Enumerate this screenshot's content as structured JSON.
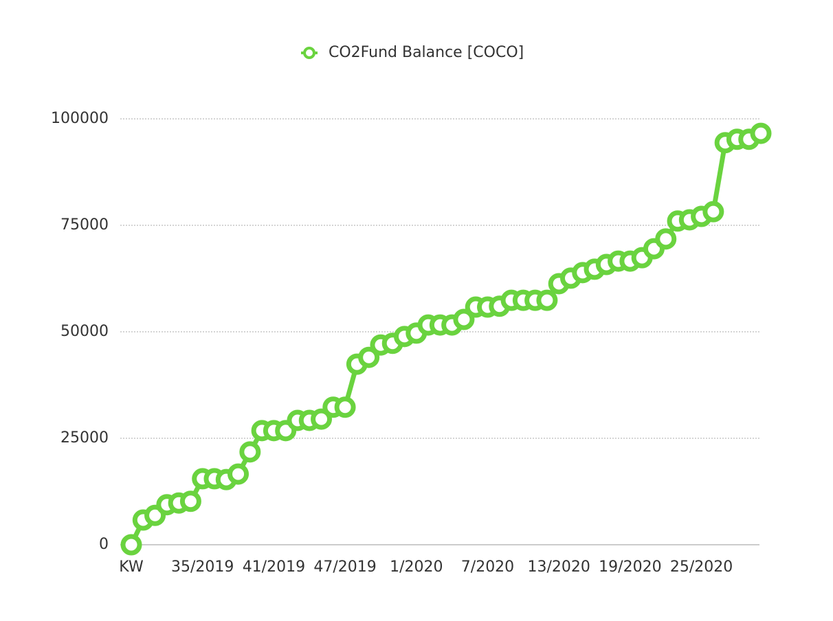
{
  "chart_data": {
    "type": "line",
    "categories": [
      "KW",
      null,
      null,
      null,
      null,
      null,
      "35/2019",
      null,
      null,
      null,
      null,
      null,
      "41/2019",
      null,
      null,
      null,
      null,
      null,
      "47/2019",
      null,
      null,
      null,
      null,
      null,
      "1/2020",
      null,
      null,
      null,
      null,
      null,
      "7/2020",
      null,
      null,
      null,
      null,
      null,
      "13/2020",
      null,
      null,
      null,
      null,
      null,
      "19/2020",
      null,
      null,
      null,
      null,
      null,
      "25/2020",
      null,
      null,
      null,
      null,
      null
    ],
    "series": [
      {
        "name": "CO2Fund Balance [COCO]",
        "color": "#6ad33f",
        "values": [
          0,
          5800,
          6900,
          9400,
          9800,
          10200,
          15500,
          15500,
          15300,
          16600,
          21800,
          26800,
          26800,
          26800,
          29200,
          29200,
          29500,
          32300,
          32300,
          42400,
          44000,
          46900,
          47300,
          48900,
          49700,
          51600,
          51600,
          51600,
          52900,
          55800,
          55800,
          56000,
          57400,
          57400,
          57400,
          57400,
          61300,
          62600,
          63900,
          64700,
          65800,
          66600,
          66600,
          67400,
          69500,
          71800,
          76000,
          76300,
          77100,
          78200,
          94400,
          95200,
          95200,
          96600
        ]
      }
    ],
    "ylim": [
      0,
      100000
    ],
    "yticks": [
      0,
      25000,
      50000,
      75000,
      100000
    ],
    "grid": true,
    "legend": "top"
  }
}
